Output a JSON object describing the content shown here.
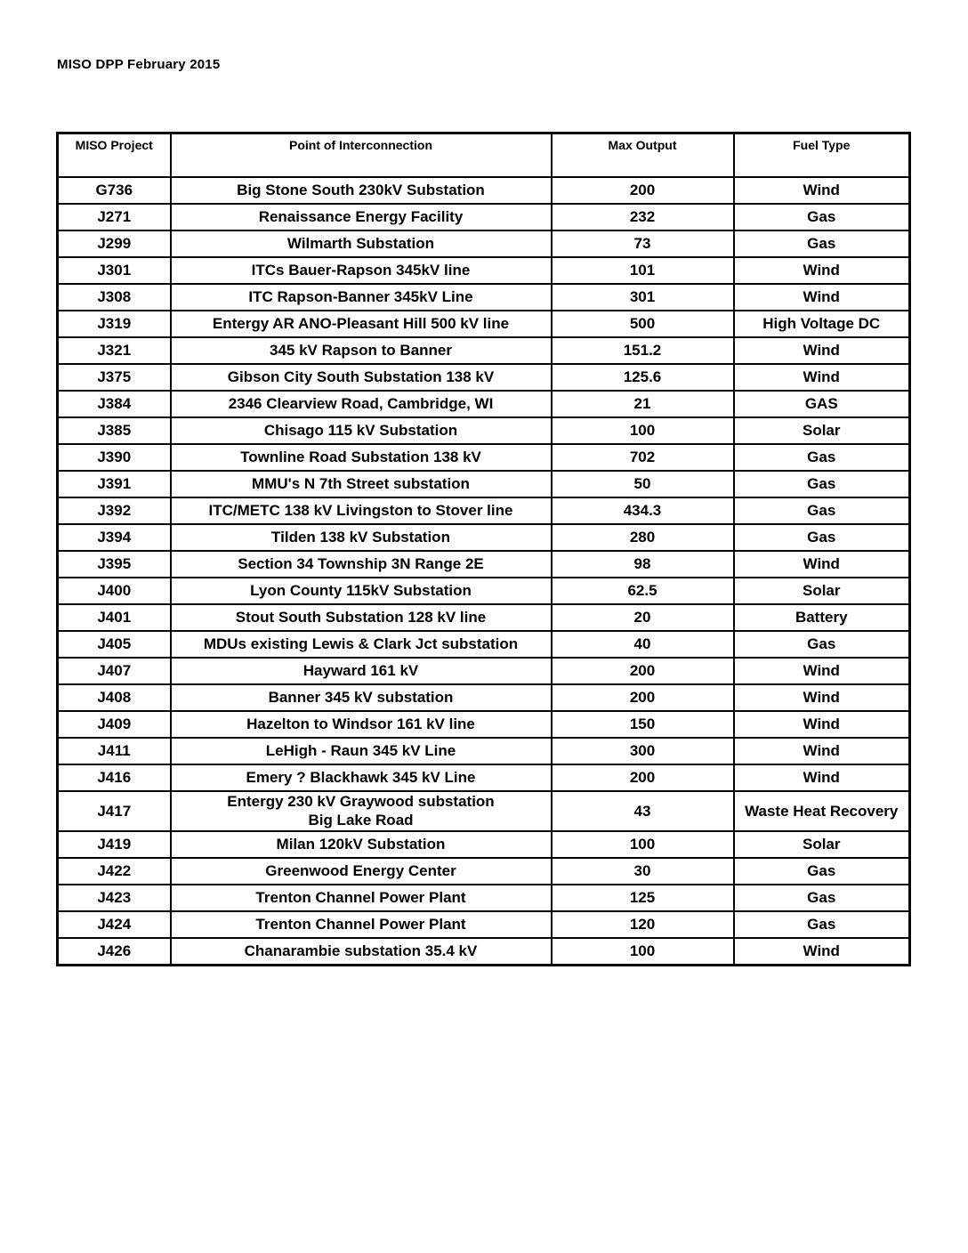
{
  "page": {
    "title": "MISO DPP February 2015"
  },
  "table": {
    "headers": [
      "MISO Project",
      "Point of Interconnection",
      "Max Output",
      "Fuel Type"
    ],
    "rows": [
      {
        "project": "G736",
        "poi": "Big Stone South 230kV Substation",
        "output": "200",
        "fuel": "Wind"
      },
      {
        "project": "J271",
        "poi": "Renaissance Energy Facility",
        "output": "232",
        "fuel": "Gas"
      },
      {
        "project": "J299",
        "poi": "Wilmarth Substation",
        "output": "73",
        "fuel": "Gas"
      },
      {
        "project": "J301",
        "poi": "ITCs Bauer-Rapson 345kV line",
        "output": "101",
        "fuel": "Wind"
      },
      {
        "project": "J308",
        "poi": "ITC Rapson-Banner 345kV Line",
        "output": "301",
        "fuel": "Wind"
      },
      {
        "project": "J319",
        "poi": "Entergy AR ANO-Pleasant Hill 500 kV line",
        "output": "500",
        "fuel": "High Voltage DC"
      },
      {
        "project": "J321",
        "poi": "345 kV Rapson to Banner",
        "output": "151.2",
        "fuel": "Wind"
      },
      {
        "project": "J375",
        "poi": "Gibson City South Substation 138 kV",
        "output": "125.6",
        "fuel": "Wind"
      },
      {
        "project": "J384",
        "poi": "2346 Clearview Road, Cambridge, WI",
        "output": "21",
        "fuel": "GAS"
      },
      {
        "project": "J385",
        "poi": "Chisago 115 kV Substation",
        "output": "100",
        "fuel": "Solar"
      },
      {
        "project": "J390",
        "poi": "Townline Road Substation 138 kV",
        "output": "702",
        "fuel": "Gas"
      },
      {
        "project": "J391",
        "poi": "MMU's N 7th Street substation",
        "output": "50",
        "fuel": "Gas"
      },
      {
        "project": "J392",
        "poi": "ITC/METC 138 kV Livingston to Stover line",
        "output": "434.3",
        "fuel": "Gas"
      },
      {
        "project": "J394",
        "poi": "Tilden 138 kV Substation",
        "output": "280",
        "fuel": "Gas"
      },
      {
        "project": "J395",
        "poi": "Section 34 Township 3N Range 2E",
        "output": "98",
        "fuel": "Wind"
      },
      {
        "project": "J400",
        "poi": "Lyon County 115kV Substation",
        "output": "62.5",
        "fuel": "Solar"
      },
      {
        "project": "J401",
        "poi": "Stout South Substation 128 kV line",
        "output": "20",
        "fuel": "Battery"
      },
      {
        "project": "J405",
        "poi": "MDUs existing Lewis & Clark Jct substation",
        "output": "40",
        "fuel": "Gas"
      },
      {
        "project": "J407",
        "poi": "Hayward 161 kV",
        "output": "200",
        "fuel": "Wind"
      },
      {
        "project": "J408",
        "poi": "Banner 345 kV substation",
        "output": "200",
        "fuel": "Wind"
      },
      {
        "project": "J409",
        "poi": "Hazelton to Windsor 161 kV line",
        "output": "150",
        "fuel": "Wind"
      },
      {
        "project": "J411",
        "poi": "LeHigh - Raun 345 kV Line",
        "output": "300",
        "fuel": "Wind"
      },
      {
        "project": "J416",
        "poi": "Emery ? Blackhawk 345 kV Line",
        "output": "200",
        "fuel": "Wind"
      },
      {
        "project": "J417",
        "poi": "Entergy 230 kV Graywood substation",
        "poi2": "Big Lake Road",
        "output": "43",
        "fuel": "Waste Heat Recovery"
      },
      {
        "project": "J419",
        "poi": "Milan 120kV Substation",
        "output": "100",
        "fuel": "Solar"
      },
      {
        "project": "J422",
        "poi": "Greenwood Energy Center",
        "output": "30",
        "fuel": "Gas"
      },
      {
        "project": "J423",
        "poi": "Trenton Channel Power Plant",
        "output": "125",
        "fuel": "Gas"
      },
      {
        "project": "J424",
        "poi": "Trenton Channel Power Plant",
        "output": "120",
        "fuel": "Gas"
      },
      {
        "project": "J426",
        "poi": "Chanarambie substation 35.4 kV",
        "output": "100",
        "fuel": "Wind"
      }
    ]
  }
}
